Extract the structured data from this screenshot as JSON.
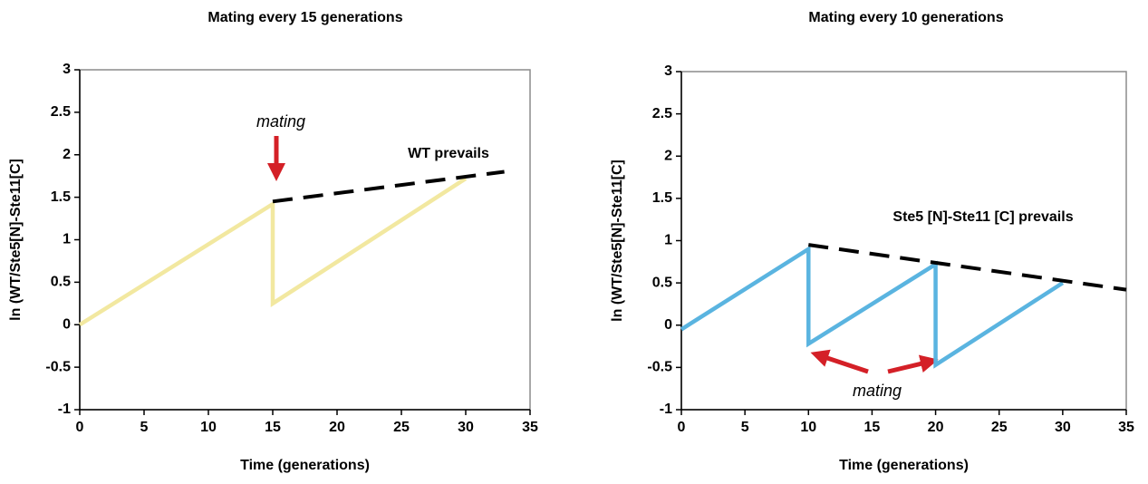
{
  "chart_data": [
    {
      "type": "line",
      "title": "Mating every 15 generations",
      "xlabel": "Time (generations)",
      "ylabel": "ln (WT/Ste5[N]-Ste11[C]",
      "xlim": [
        0,
        35
      ],
      "xticks": [
        0,
        5,
        10,
        15,
        20,
        25,
        30,
        35
      ],
      "ylim": [
        -1,
        3
      ],
      "yticks": [
        -1,
        -0.5,
        0,
        0.5,
        1,
        1.5,
        2,
        2.5,
        3
      ],
      "series": [
        {
          "color": "#f2e8a0",
          "dashed": false,
          "x": [
            0,
            15,
            15,
            30
          ],
          "values": [
            0,
            1.42,
            0.25,
            1.72
          ]
        },
        {
          "color": "#000000",
          "dashed": true,
          "x": [
            15,
            33
          ],
          "values": [
            1.45,
            1.8
          ]
        }
      ],
      "annotations": [
        "mating",
        "WT prevails"
      ]
    },
    {
      "type": "line",
      "title": "Mating every 10 generations",
      "xlabel": "Time (generations)",
      "ylabel": "ln (WT/Ste5[N]-Ste11[C]",
      "xlim": [
        0,
        35
      ],
      "xticks": [
        0,
        5,
        10,
        15,
        20,
        25,
        30,
        35
      ],
      "ylim": [
        -1,
        3
      ],
      "yticks": [
        -1,
        -0.5,
        0,
        0.5,
        1,
        1.5,
        2,
        2.5,
        3
      ],
      "series": [
        {
          "color": "#5ab4e0",
          "dashed": false,
          "x": [
            0,
            10,
            10,
            20,
            20,
            30
          ],
          "values": [
            -0.05,
            0.9,
            -0.22,
            0.72,
            -0.47,
            0.5
          ]
        },
        {
          "color": "#000000",
          "dashed": true,
          "x": [
            10,
            35
          ],
          "values": [
            0.95,
            0.42
          ]
        }
      ],
      "annotations": [
        "Ste5 [N]-Ste11 [C] prevails",
        "mating"
      ]
    }
  ]
}
